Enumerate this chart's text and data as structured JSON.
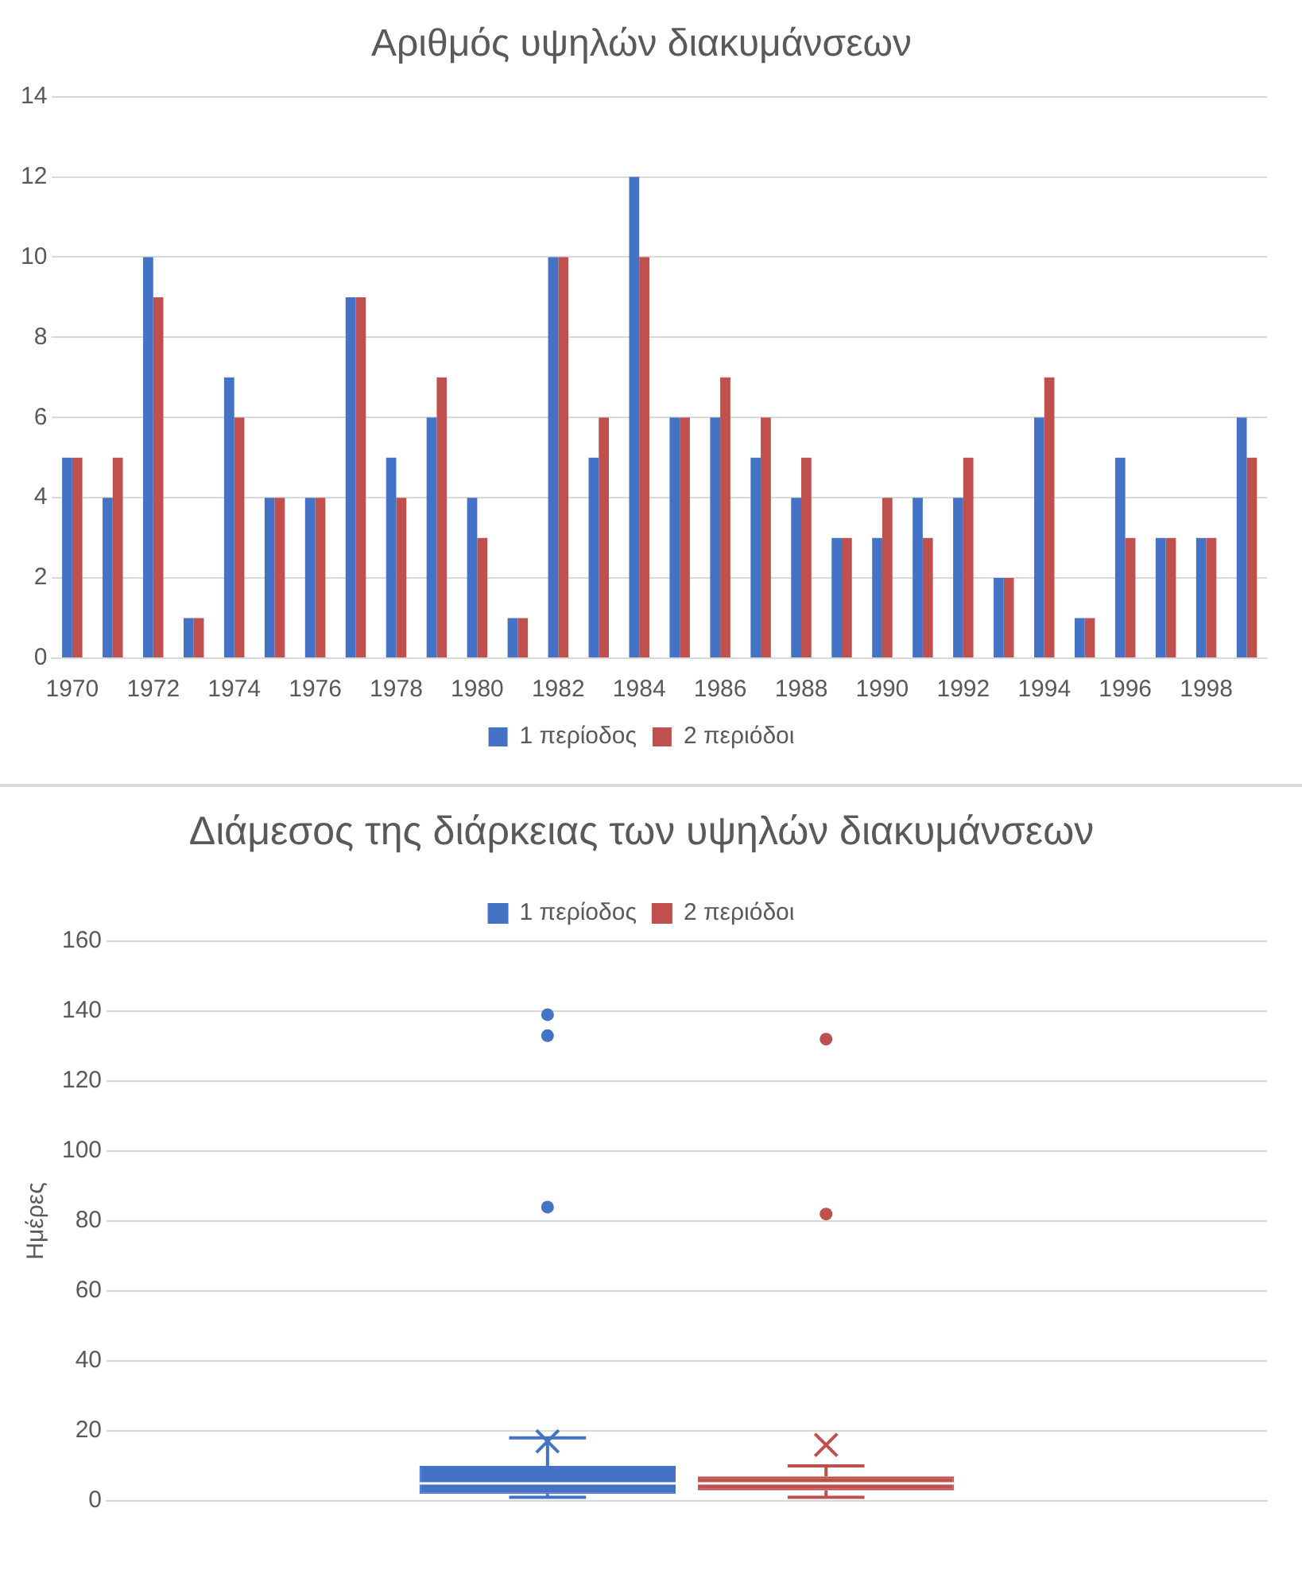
{
  "chart_data": [
    {
      "type": "bar",
      "title": "Αριθμός υψηλών διακυμάνσεων",
      "categories": [
        "1970",
        null,
        "1972",
        null,
        "1974",
        null,
        "1976",
        null,
        "1978",
        null,
        "1980",
        null,
        "1982",
        null,
        "1984",
        null,
        "1986",
        null,
        "1988",
        null,
        "1990",
        null,
        "1992",
        null,
        "1994",
        null,
        "1996",
        null,
        "1998",
        null
      ],
      "series": [
        {
          "name": "1 περίοδος",
          "color": "#4472c4",
          "values": [
            5,
            4,
            10,
            1,
            7,
            4,
            4,
            9,
            5,
            6,
            4,
            1,
            10,
            5,
            12,
            6,
            6,
            5,
            4,
            3,
            3,
            4,
            4,
            2,
            6,
            1,
            5,
            3,
            3,
            6
          ]
        },
        {
          "name": "2 περιόδοι",
          "color": "#c0504d",
          "values": [
            5,
            5,
            9,
            1,
            6,
            4,
            4,
            9,
            4,
            7,
            3,
            1,
            10,
            6,
            10,
            6,
            7,
            6,
            5,
            3,
            4,
            3,
            5,
            2,
            7,
            1,
            3,
            3,
            3,
            5
          ]
        }
      ],
      "ylim": [
        0,
        14
      ],
      "yticks": [
        0,
        2,
        4,
        6,
        8,
        10,
        12,
        14
      ],
      "grid": "y",
      "legend": "bottom"
    },
    {
      "type": "box",
      "title": "Διάμεσος της διάρκειας των υψηλών διακυμάνσεων",
      "ylabel": "Ημέρες",
      "categories": [
        null
      ],
      "series": [
        {
          "name": "1 περίοδος",
          "color": "#4472c4",
          "boxes": [
            {
              "low": 1,
              "q1": 2,
              "median": 5,
              "q3": 10,
              "high": 18,
              "mean": 17,
              "outliers": [
                84,
                133,
                139
              ]
            }
          ]
        },
        {
          "name": "2 περιόδοι",
          "color": "#c0504d",
          "boxes": [
            {
              "low": 1,
              "q1": 3,
              "median": 5,
              "q3": 7,
              "high": 10,
              "mean": 16,
              "outliers": [
                82,
                132
              ]
            }
          ]
        }
      ],
      "ylim": [
        0,
        160
      ],
      "yticks": [
        0,
        20,
        40,
        60,
        80,
        100,
        120,
        140,
        160
      ],
      "grid": "y",
      "legend": "top"
    }
  ]
}
